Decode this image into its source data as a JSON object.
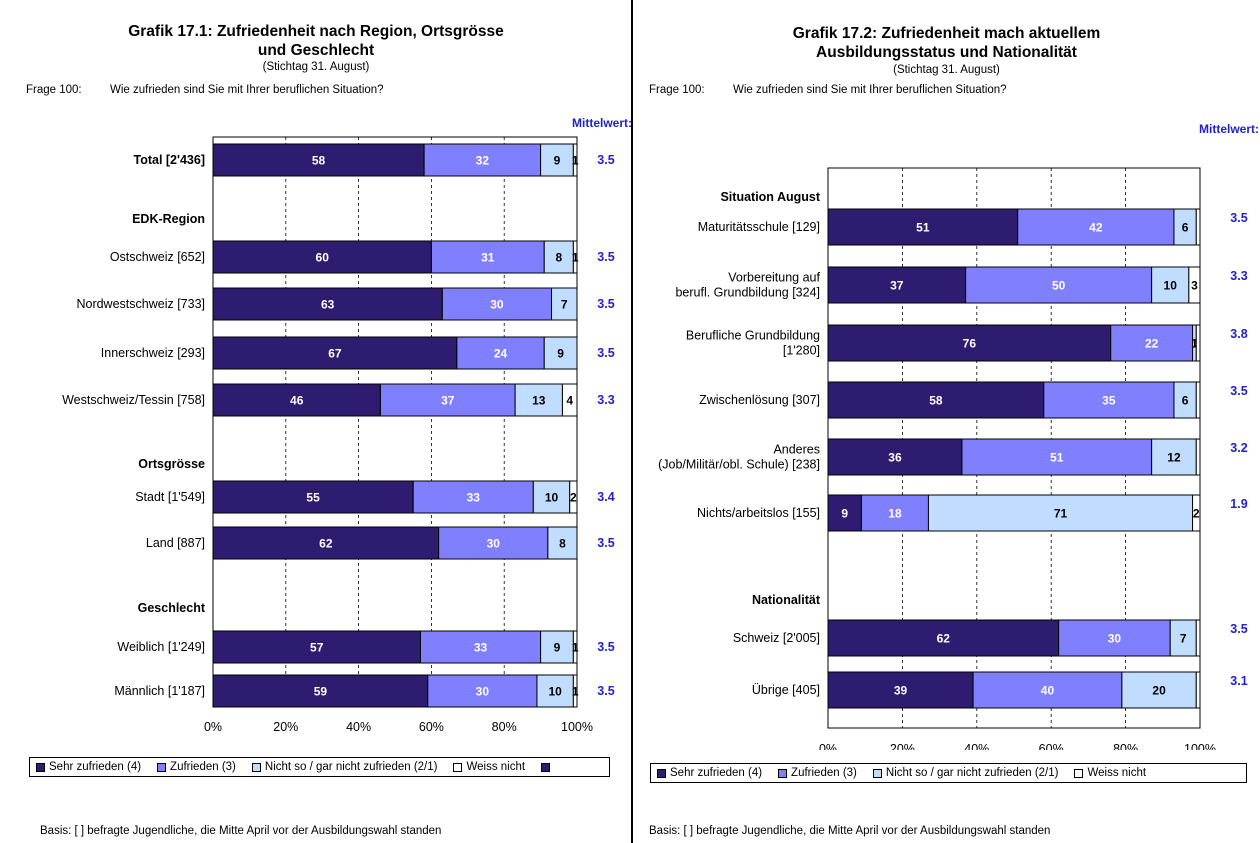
{
  "left": {
    "title_line1": "Grafik 17.1: Zufriedenheit nach Region, Ortsgrösse",
    "title_line2": "und Geschlecht",
    "stichtag": "(Stichtag 31. August)",
    "frage_label": "Frage 100:",
    "frage_text": "Wie zufrieden sind Sie mit Ihrer beruflichen Situation?",
    "mittelwert_label": "Mittelwert:",
    "legend": [
      "Sehr zufrieden (4)",
      "Zufrieden (3)",
      "Nicht so / gar nicht zufrieden (2/1)",
      "Weiss nicht"
    ],
    "basis": "Basis:    [  ] befragte Jugendliche, die Mitte April vor der Ausbildungswahl standen"
  },
  "right": {
    "title_line1": "Grafik 17.2: Zufriedenheit mach aktuellem",
    "title_line2": "Ausbildungsstatus und Nationalität",
    "stichtag": "(Stichtag 31. August)",
    "frage_label": "Frage 100:",
    "frage_text": "Wie zufrieden sind Sie mit Ihrer beruflichen Situation?",
    "mittelwert_label": "Mittelwert:",
    "legend": [
      "Sehr zufrieden (4)",
      "Zufrieden (3)",
      "Nicht so / gar nicht zufrieden (2/1)",
      "Weiss nicht"
    ],
    "basis": "Basis:    [  ] befragte Jugendliche, die Mitte April vor der Ausbildungswahl standen"
  },
  "colors": {
    "sehr_zufrieden": "#2e1c70",
    "zufrieden": "#8080ff",
    "nicht_zufrieden": "#c0dcff",
    "weiss_nicht": "#ffffff",
    "mittelwert": "#2222cc"
  },
  "chart_data": [
    {
      "type": "bar",
      "orientation": "horizontal",
      "stacked": true,
      "x_ticks": [
        "0%",
        "20%",
        "40%",
        "60%",
        "80%",
        "100%"
      ],
      "xlim": [
        0,
        100
      ],
      "series": [
        {
          "name": "Sehr zufrieden (4)"
        },
        {
          "name": "Zufrieden (3)"
        },
        {
          "name": "Nicht so / gar nicht zufrieden (2/1)"
        },
        {
          "name": "Weiss nicht"
        }
      ],
      "rows": [
        {
          "kind": "bar",
          "label": "Total [2'436]",
          "bold": true,
          "values": [
            58,
            32,
            9,
            1
          ],
          "labels": [
            "58",
            "32",
            "9",
            "1"
          ],
          "mean": "3.5"
        },
        {
          "kind": "gap"
        },
        {
          "kind": "heading",
          "label": "EDK-Region"
        },
        {
          "kind": "bar",
          "label": "Ostschweiz [652]",
          "values": [
            60,
            31,
            8,
            1
          ],
          "labels": [
            "60",
            "31",
            "8",
            "1"
          ],
          "mean": "3.5"
        },
        {
          "kind": "bar",
          "label": "Nordwestschweiz [733]",
          "values": [
            63,
            30,
            7,
            0
          ],
          "labels": [
            "63",
            "30",
            "7",
            ""
          ],
          "mean": "3.5"
        },
        {
          "kind": "bar",
          "label": "Innerschweiz [293]",
          "values": [
            67,
            24,
            9,
            0
          ],
          "labels": [
            "67",
            "24",
            "9",
            ""
          ],
          "mean": "3.5"
        },
        {
          "kind": "bar",
          "label": "Westschweiz/Tessin [758]",
          "values": [
            46,
            37,
            13,
            4
          ],
          "labels": [
            "46",
            "37",
            "13",
            "4"
          ],
          "mean": "3.3"
        },
        {
          "kind": "gap"
        },
        {
          "kind": "heading",
          "label": "Ortsgrösse"
        },
        {
          "kind": "bar",
          "label": "Stadt [1'549]",
          "values": [
            55,
            33,
            10,
            2
          ],
          "labels": [
            "55",
            "33",
            "10",
            "2"
          ],
          "mean": "3.4"
        },
        {
          "kind": "bar",
          "label": "Land [887]",
          "values": [
            62,
            30,
            8,
            0
          ],
          "labels": [
            "62",
            "30",
            "8",
            ""
          ],
          "mean": "3.5"
        },
        {
          "kind": "gap"
        },
        {
          "kind": "heading",
          "label": "Geschlecht"
        },
        {
          "kind": "bar",
          "label": "Weiblich [1'249]",
          "values": [
            57,
            33,
            9,
            1
          ],
          "labels": [
            "57",
            "33",
            "9",
            "1"
          ],
          "mean": "3.5"
        },
        {
          "kind": "bar",
          "label": "Männlich [1'187]",
          "values": [
            59,
            30,
            10,
            1
          ],
          "labels": [
            "59",
            "30",
            "10",
            "1"
          ],
          "mean": "3.5"
        }
      ]
    },
    {
      "type": "bar",
      "orientation": "horizontal",
      "stacked": true,
      "x_ticks": [
        "0%",
        "20%",
        "40%",
        "60%",
        "80%",
        "100%"
      ],
      "xlim": [
        0,
        100
      ],
      "series": [
        {
          "name": "Sehr zufrieden (4)"
        },
        {
          "name": "Zufrieden (3)"
        },
        {
          "name": "Nicht so / gar nicht zufrieden (2/1)"
        },
        {
          "name": "Weiss nicht"
        }
      ],
      "rows": [
        {
          "kind": "gap"
        },
        {
          "kind": "heading",
          "label": "Situation August"
        },
        {
          "kind": "bar",
          "label": "Maturitätsschule [129]",
          "values": [
            51,
            42,
            6,
            1
          ],
          "labels": [
            "51",
            "42",
            "6",
            ""
          ],
          "mean": "3.5"
        },
        {
          "kind": "bar",
          "label": "Vorbereitung auf\nberufl. Grundbildung [324]",
          "values": [
            37,
            50,
            10,
            3
          ],
          "labels": [
            "37",
            "50",
            "10",
            "3"
          ],
          "mean": "3.3"
        },
        {
          "kind": "bar",
          "label": "Berufliche Grundbildung\n[1'280]",
          "values": [
            76,
            22,
            1,
            1
          ],
          "labels": [
            "76",
            "22",
            "1",
            ""
          ],
          "mean": "3.8"
        },
        {
          "kind": "bar",
          "label": "Zwischenlösung [307]",
          "values": [
            58,
            35,
            6,
            1
          ],
          "labels": [
            "58",
            "35",
            "6",
            ""
          ],
          "mean": "3.5"
        },
        {
          "kind": "bar",
          "label": "Anderes\n(Job/Militär/obl. Schule) [238]",
          "values": [
            36,
            51,
            12,
            1
          ],
          "labels": [
            "36",
            "51",
            "12",
            ""
          ],
          "mean": "3.2"
        },
        {
          "kind": "bar",
          "label": "Nichts/arbeitslos [155]",
          "values": [
            9,
            18,
            71,
            2
          ],
          "labels": [
            "9",
            "18",
            "71",
            "2"
          ],
          "mean": "1.9"
        },
        {
          "kind": "gap"
        },
        {
          "kind": "heading",
          "label": "Nationalität"
        },
        {
          "kind": "bar",
          "label": "Schweiz [2'005]",
          "values": [
            62,
            30,
            7,
            1
          ],
          "labels": [
            "62",
            "30",
            "7",
            ""
          ],
          "mean": "3.5"
        },
        {
          "kind": "bar",
          "label": "Übrige [405]",
          "values": [
            39,
            40,
            20,
            1
          ],
          "labels": [
            "39",
            "40",
            "20",
            ""
          ],
          "mean": "3.1"
        }
      ]
    }
  ]
}
